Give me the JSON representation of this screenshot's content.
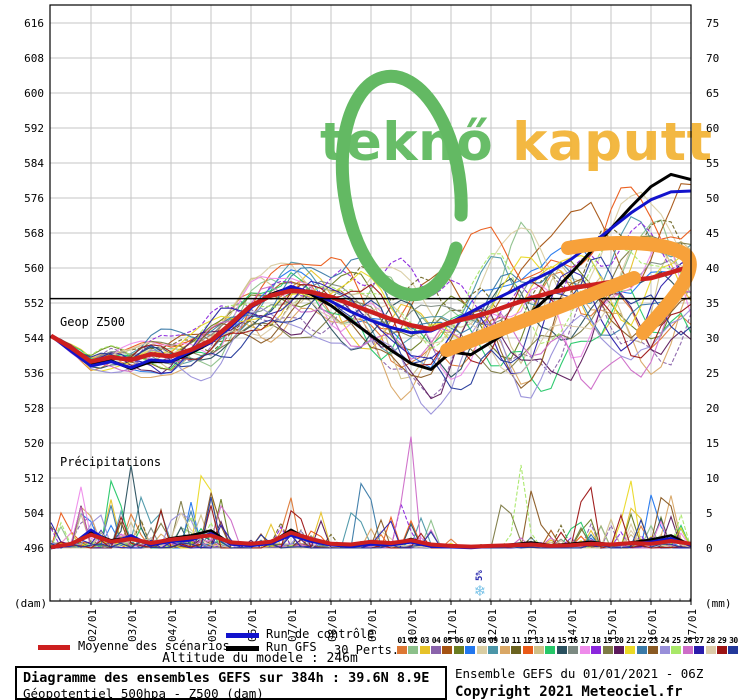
{
  "watermark": {
    "part1": "teknő",
    "part2": " kaputt",
    "color1": "#5cb85c",
    "color2": "#f2b233"
  },
  "legend": {
    "mean_label": "Moyenne des scénarios",
    "control_label": "Run de contrôle",
    "gfs_label": "Run GFS",
    "perts_label": "30 Perts.",
    "pert_labels": [
      "01",
      "02",
      "03",
      "04",
      "05",
      "06",
      "07",
      "08",
      "09",
      "10",
      "11",
      "12",
      "13",
      "14",
      "15",
      "16",
      "17",
      "18",
      "19",
      "20",
      "21",
      "22",
      "23",
      "24",
      "25",
      "26",
      "27",
      "28",
      "29",
      "30"
    ],
    "pert_colors": [
      "#dd7733",
      "#8cc08a",
      "#e6c229",
      "#8a63ab",
      "#a55312",
      "#6a7d21",
      "#2277ee",
      "#d9cda3",
      "#4b96a8",
      "#d9a765",
      "#6b6320",
      "#ea5a17",
      "#cfc089",
      "#25c768",
      "#29505e",
      "#7c8a82",
      "#ee8bea",
      "#8b26dd",
      "#7d7a45",
      "#5c1a5c",
      "#ead926",
      "#3a7aa8",
      "#8a5a23",
      "#988fd9",
      "#a8e868",
      "#cd6cc8",
      "#2a1cab",
      "#dbcba9",
      "#9c1414",
      "#23389a"
    ]
  },
  "altitude_label": "Altitude du modele : 246m",
  "info_left": {
    "title": "Diagramme des ensembles GEFS sur 384h : 39.6N 8.9E",
    "subtitle": "Géopotentiel 500hpa - Z500 (dam)"
  },
  "info_right": {
    "run": "Ensemble GEFS du 01/01/2021 - 06Z",
    "copyright": "Copyright 2021 Meteociel.fr"
  },
  "chart_data": {
    "type": "line",
    "title": "Diagramme des ensembles GEFS sur 384h : 39.6N 8.9E",
    "panel_labels": {
      "geo": "Geop Z500",
      "precip": "Précipitations"
    },
    "axes": {
      "left_unit": "(dam)",
      "right_unit": "(mm)",
      "left_ticks": [
        "616",
        "608",
        "600",
        "592",
        "584",
        "576",
        "568",
        "560",
        "552",
        "544",
        "536",
        "528",
        "520",
        "512",
        "504",
        "496"
      ],
      "right_ticks": [
        "75",
        "70",
        "65",
        "60",
        "55",
        "50",
        "45",
        "40",
        "35",
        "30",
        "25",
        "20",
        "15",
        "10",
        "5",
        "0"
      ],
      "x_ticks": [
        "02/01",
        "03/01",
        "04/01",
        "05/01",
        "06/01",
        "07/01",
        "08/01",
        "09/01",
        "10/01",
        "11/01",
        "12/01",
        "13/01",
        "14/01",
        "15/01",
        "16/01",
        "17/01"
      ],
      "ylim_dam": [
        492,
        620
      ],
      "ylim_mm": [
        0,
        75
      ],
      "grid": true
    },
    "threshold_dam": 553,
    "snow_marker": {
      "label": "5%",
      "day": 11.725,
      "flake_color": "#7cc4e8",
      "text_color": "#2222aa"
    },
    "annotations": {
      "circle_color": "#63b963",
      "arrow_color": "#f7a13a"
    },
    "days": [
      1,
      1.5,
      2,
      2.5,
      3,
      3.5,
      4,
      4.5,
      5,
      5.5,
      6,
      6.5,
      7,
      7.5,
      8,
      8.5,
      9,
      9.5,
      10,
      10.5,
      11,
      11.5,
      12,
      12.5,
      13,
      13.5,
      14,
      14.5,
      15,
      15.5,
      16,
      16.5,
      17
    ],
    "series": [
      {
        "name": "Moyenne des scénarios",
        "color": "#cc1f1f",
        "width": 4.5,
        "geopotential_dam": [
          544.5,
          541.8,
          538.6,
          539.6,
          539.0,
          540.3,
          539.8,
          541.3,
          543.4,
          547.3,
          551.4,
          553.7,
          554.8,
          554.5,
          553.4,
          551.7,
          550.0,
          548.3,
          546.9,
          546.0,
          547.6,
          548.7,
          550.0,
          551.6,
          553.1,
          554.4,
          555.4,
          556.1,
          556.8,
          557.2,
          557.7,
          559.0,
          560.4
        ],
        "precip_mm": [
          0.1,
          0.6,
          1.9,
          0.9,
          1.3,
          0.7,
          1.2,
          1.5,
          1.8,
          0.8,
          0.6,
          0.9,
          2.2,
          1.3,
          0.6,
          0.5,
          0.9,
          0.7,
          1.1,
          0.5,
          0.3,
          0.2,
          0.3,
          0.4,
          0.5,
          0.3,
          0.4,
          0.6,
          0.5,
          0.7,
          0.6,
          1.0,
          0.6
        ]
      },
      {
        "name": "Run de contrôle",
        "color": "#1213cc",
        "width": 3,
        "geopotential_dam": [
          544.5,
          541.0,
          537.6,
          538.6,
          537.2,
          539.0,
          538.6,
          541.0,
          543.0,
          546.6,
          551.0,
          553.6,
          555.8,
          554.4,
          552.4,
          550.0,
          548.0,
          546.4,
          545.2,
          545.6,
          547.6,
          550.0,
          552.4,
          554.6,
          557.0,
          559.2,
          562.0,
          565.4,
          569.0,
          572.6,
          575.6,
          577.4,
          577.6
        ],
        "precip_mm": [
          0,
          0.4,
          2.6,
          0.7,
          1.8,
          0.4,
          0.9,
          1.1,
          2.1,
          0.5,
          0.3,
          0.6,
          1.8,
          0.9,
          0.4,
          0.2,
          0.5,
          0.4,
          0.8,
          0.2,
          0.1,
          0,
          0.2,
          0.3,
          0.6,
          0.2,
          0.3,
          0.5,
          0.4,
          0.6,
          0.9,
          1.4,
          0.3
        ]
      },
      {
        "name": "Run GFS",
        "color": "#000000",
        "width": 3,
        "geopotential_dam": [
          544.5,
          541.4,
          538.2,
          538.8,
          537.0,
          538.6,
          538.6,
          540.6,
          543.0,
          547.0,
          551.2,
          554.0,
          555.6,
          554.0,
          551.4,
          548.0,
          544.6,
          541.2,
          538.2,
          536.8,
          540.8,
          540.2,
          543.0,
          546.0,
          549.8,
          554.0,
          558.8,
          563.8,
          569.0,
          574.0,
          578.6,
          581.4,
          580.2
        ],
        "precip_mm": [
          0,
          0.5,
          2.2,
          1.1,
          1.5,
          0.6,
          1.4,
          1.8,
          2.5,
          0.6,
          0.4,
          0.8,
          2.6,
          1.1,
          0.5,
          0.3,
          0.7,
          0.5,
          1.3,
          0.4,
          0.2,
          0.1,
          0.2,
          0.5,
          0.8,
          0.4,
          0.6,
          0.9,
          0.5,
          0.8,
          1.2,
          1.8,
          0.4
        ]
      }
    ],
    "members": {
      "count": 30,
      "note": "30 GEFS perturbation members rendered as thin spaghetti lines around the ensemble mean",
      "precip_highlight_spikes": [
        [
          17,
          1.75,
          8.3
        ],
        [
          4,
          1.9,
          6.2
        ],
        [
          15,
          3.0,
          11.3
        ],
        [
          14,
          2.6,
          5.5
        ],
        [
          9,
          3.35,
          7.0
        ],
        [
          21,
          4.85,
          15.5
        ],
        [
          23,
          5.05,
          9.5
        ],
        [
          26,
          5.3,
          7.2
        ],
        [
          24,
          4.3,
          5.8
        ],
        [
          1,
          6.95,
          6.8
        ],
        [
          29,
          7.1,
          8.0
        ],
        [
          9,
          8.6,
          7.5
        ],
        [
          22,
          8.85,
          13.8
        ],
        [
          18,
          9.8,
          7.0
        ],
        [
          26,
          9.95,
          18.8
        ],
        [
          19,
          12.35,
          9.2
        ],
        [
          25,
          12.75,
          11.6
        ],
        [
          23,
          13.05,
          9.8
        ],
        [
          14,
          14.15,
          5.5
        ],
        [
          29,
          14.4,
          12.8
        ],
        [
          21,
          15.45,
          11.5
        ],
        [
          3,
          15.6,
          8.0
        ],
        [
          7,
          16.05,
          9.0
        ],
        [
          23,
          16.35,
          10.8
        ],
        [
          10,
          16.5,
          7.5
        ]
      ]
    }
  }
}
